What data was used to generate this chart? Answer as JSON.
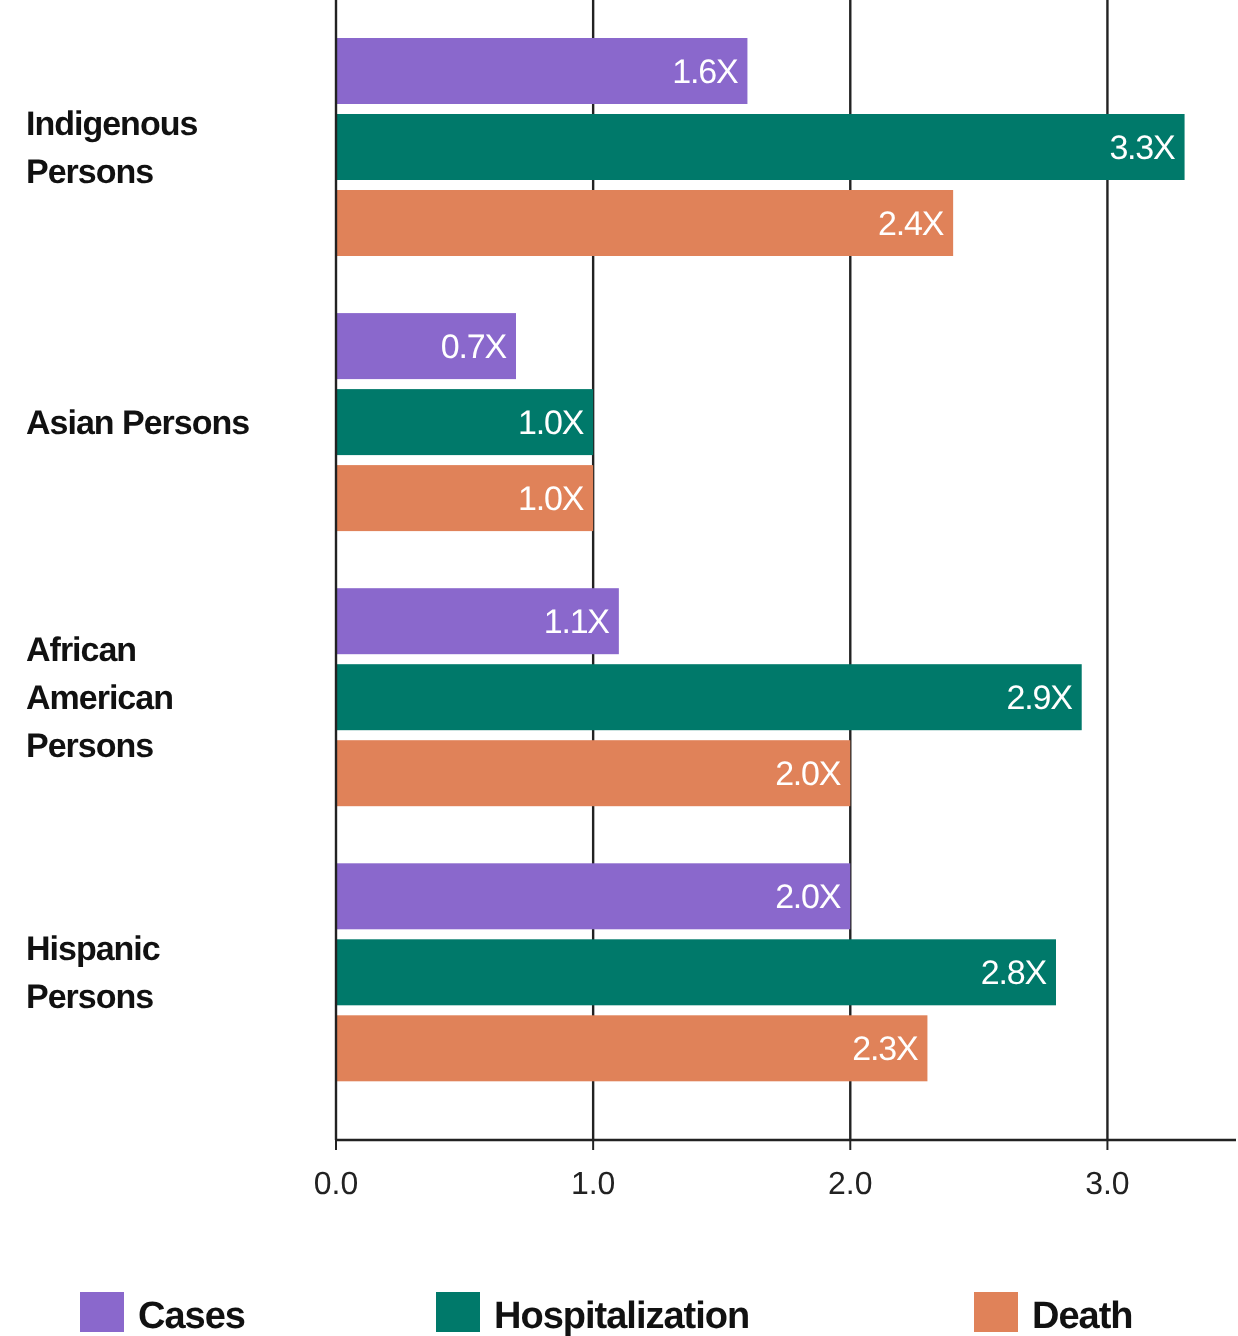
{
  "chart_data": {
    "type": "bar",
    "orientation": "horizontal",
    "categories": [
      "Indigenous Persons",
      "Asian Persons",
      "African American Persons",
      "Hispanic Persons"
    ],
    "series": [
      {
        "name": "Cases",
        "color": "#8a68cc",
        "values": [
          1.6,
          0.7,
          1.1,
          2.0
        ],
        "value_labels": [
          "1.6X",
          "0.7X",
          "1.1X",
          "2.0X"
        ]
      },
      {
        "name": "Hospitalization",
        "color": "#00796a",
        "values": [
          3.3,
          1.0,
          2.9,
          2.8
        ],
        "value_labels": [
          "3.3X",
          "1.0X",
          "2.9X",
          "2.8X"
        ]
      },
      {
        "name": "Death",
        "color": "#e08259",
        "values": [
          2.4,
          1.0,
          2.0,
          2.3
        ],
        "value_labels": [
          "2.4X",
          "1.0X",
          "2.0X",
          "2.3X"
        ]
      }
    ],
    "xlim": [
      0,
      3.5
    ],
    "xticks": [
      {
        "value": 0,
        "label": "0.0"
      },
      {
        "value": 1,
        "label": "1.0"
      },
      {
        "value": 2,
        "label": "2.0"
      },
      {
        "value": 3,
        "label": "3.0"
      }
    ],
    "grid": "x",
    "legend": "bottom"
  }
}
